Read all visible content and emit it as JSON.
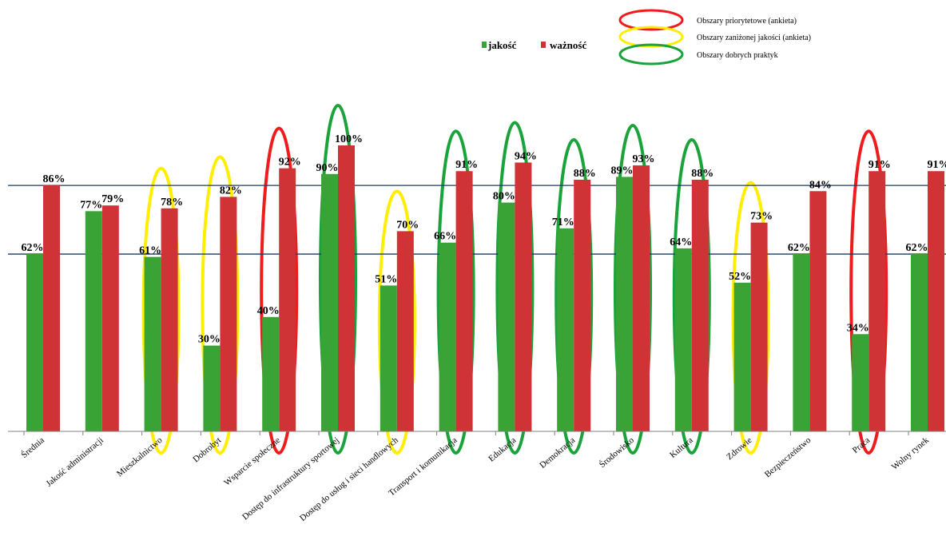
{
  "chart_data": {
    "type": "bar",
    "categories": [
      "Średnia",
      "Jakość administracji",
      "Mieszkalnictwo",
      "Dobrobyt",
      "Wsparcie społeczne",
      "Dostęp do infrastruktury sportowej",
      "Dostęp do usług i sieci handlowych",
      "Transport i komunikacja",
      "Edukacja",
      "Demokracja",
      "Środowisko",
      "Kultura",
      "Zdrowie",
      "Bezpieczeństwo",
      "Praca",
      "Wolny rynek"
    ],
    "series": [
      {
        "name": "jakość",
        "color": "#3aa335",
        "values": [
          62,
          77,
          61,
          30,
          40,
          90,
          51,
          66,
          80,
          71,
          89,
          64,
          52,
          62,
          34,
          62
        ],
        "labels": [
          "62%",
          "77%",
          "61%",
          "30%",
          "40%",
          "90%",
          "51%",
          "66%",
          "80%",
          "71%",
          "89%",
          "64%",
          "52%",
          "62%",
          "34%",
          "62%"
        ]
      },
      {
        "name": "ważność",
        "color": "#d03336",
        "values": [
          86,
          79,
          78,
          82,
          92,
          100,
          70,
          91,
          94,
          88,
          93,
          88,
          73,
          84,
          91,
          91
        ],
        "labels": [
          "86%",
          "79%",
          "78%",
          "82%",
          "92%",
          "100%",
          "70%",
          "91%",
          "94%",
          "88%",
          "93%",
          "88%",
          "73%",
          "84%",
          "91%",
          "91%"
        ]
      }
    ],
    "reference_lines": [
      62,
      86
    ],
    "ylim": [
      0,
      100
    ],
    "highlights": [
      {
        "category": "Mieszkalnictwo",
        "type": "yellow"
      },
      {
        "category": "Dobrobyt",
        "type": "yellow"
      },
      {
        "category": "Wsparcie społeczne",
        "type": "red"
      },
      {
        "category": "Dostęp do infrastruktury sportowej",
        "type": "green"
      },
      {
        "category": "Dostęp do usług i sieci handlowych",
        "type": "yellow"
      },
      {
        "category": "Transport i komunikacja",
        "type": "green"
      },
      {
        "category": "Edukacja",
        "type": "green"
      },
      {
        "category": "Demokracja",
        "type": "green"
      },
      {
        "category": "Środowisko",
        "type": "green"
      },
      {
        "category": "Kultura",
        "type": "green"
      },
      {
        "category": "Zdrowie",
        "type": "yellow"
      },
      {
        "category": "Praca",
        "type": "red"
      }
    ]
  },
  "legend": {
    "series": [
      {
        "label": "jakość",
        "color": "#3aa335"
      },
      {
        "label": "ważność",
        "color": "#d03336"
      }
    ],
    "areas": [
      {
        "type": "red",
        "color": "#ee1c1c",
        "label": "Obszary priorytetowe (ankieta)"
      },
      {
        "type": "yellow",
        "color": "#ffee00",
        "label": "Obszary zaniżonej jakości (ankieta)"
      },
      {
        "type": "green",
        "color": "#1aa33a",
        "label": "Obszary dobrych praktyk"
      }
    ]
  },
  "colors": {
    "reference_line": "#1f3864",
    "axis": "#808080"
  }
}
